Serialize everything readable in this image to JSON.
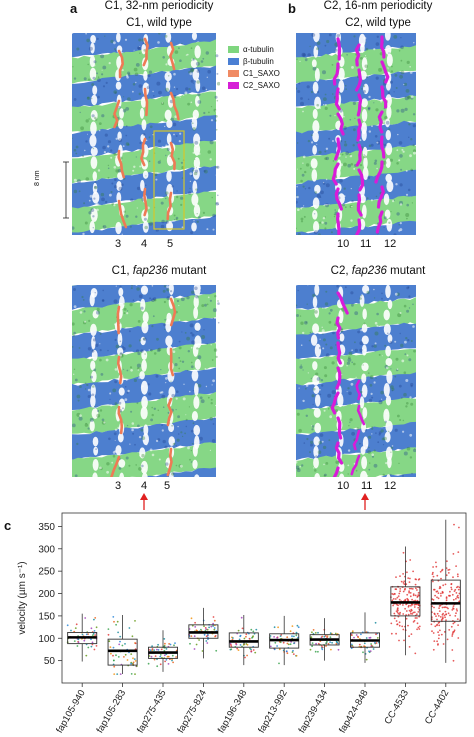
{
  "panel_a": {
    "label": "a",
    "title": "C1, 32-nm periodicity",
    "top": {
      "title": "C1, wild type",
      "protofilaments": [
        "3",
        "4",
        "5"
      ]
    },
    "bottom": {
      "title_prefix": "C1, ",
      "title_italic": "fap236",
      "title_suffix": " mutant",
      "protofilaments": [
        "3",
        "4",
        "5"
      ]
    },
    "scale_label": "8 nm"
  },
  "panel_b": {
    "label": "b",
    "title": "C2, 16-nm periodicity",
    "top": {
      "title": "C2, wild type",
      "protofilaments": [
        "10",
        "11",
        "12"
      ]
    },
    "bottom": {
      "title_prefix": "C2, ",
      "title_italic": "fap236",
      "title_suffix": " mutant",
      "protofilaments": [
        "10",
        "11",
        "12"
      ]
    }
  },
  "legend": [
    {
      "label": "α-tubulin",
      "color": "#7fd67f"
    },
    {
      "label": "β-tubulin",
      "color": "#4a7fd4"
    },
    {
      "label": "C1_SAXO",
      "color": "#f08a63"
    },
    {
      "label": "C2_SAXO",
      "color": "#d61fd6"
    }
  ],
  "colors": {
    "alpha_tubulin": "#86d786",
    "beta_tubulin": "#4d7fcf",
    "c1_saxo": "#ee7a55",
    "c2_saxo": "#d81cd8",
    "arrow": "#e02020",
    "box_highlight": "#d4c82a"
  },
  "panel_c": {
    "label": "c"
  },
  "chart_data": {
    "type": "box",
    "ylabel": "velocity (µm s⁻¹)",
    "ylim": [
      0,
      380
    ],
    "yticks": [
      50,
      100,
      150,
      200,
      250,
      300,
      350
    ],
    "categories": [
      "fap105-940",
      "fap105-283",
      "fap275-435",
      "fap275-824",
      "fap196-348",
      "fap213-992",
      "fap239-434",
      "fap424-848",
      "CC-4533",
      "CC-4402"
    ],
    "boxes": [
      {
        "q1": 88,
        "median": 102,
        "q3": 113,
        "whisker_low": 48,
        "whisker_high": 155
      },
      {
        "q1": 40,
        "median": 72,
        "q3": 98,
        "whisker_low": 20,
        "whisker_high": 152
      },
      {
        "q1": 55,
        "median": 68,
        "q3": 80,
        "whisker_low": 25,
        "whisker_high": 118
      },
      {
        "q1": 100,
        "median": 113,
        "q3": 130,
        "whisker_low": 55,
        "whisker_high": 168
      },
      {
        "q1": 80,
        "median": 93,
        "q3": 112,
        "whisker_low": 40,
        "whisker_high": 152
      },
      {
        "q1": 78,
        "median": 96,
        "q3": 110,
        "whisker_low": 40,
        "whisker_high": 150
      },
      {
        "q1": 85,
        "median": 97,
        "q3": 108,
        "whisker_low": 50,
        "whisker_high": 145
      },
      {
        "q1": 80,
        "median": 95,
        "q3": 112,
        "whisker_low": 45,
        "whisker_high": 158
      },
      {
        "q1": 150,
        "median": 180,
        "q3": 215,
        "whisker_low": 62,
        "whisker_high": 305
      },
      {
        "q1": 138,
        "median": 178,
        "q3": 230,
        "whisker_low": 45,
        "whisker_high": 365
      }
    ],
    "grid": false,
    "legend": "none"
  }
}
